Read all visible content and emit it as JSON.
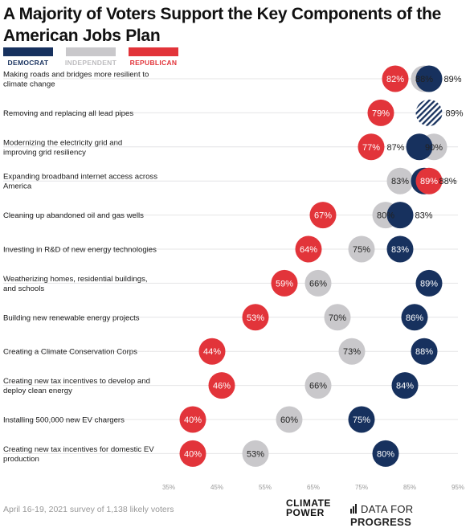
{
  "title": "A Majority of Voters Support the Key Components of the American Jobs Plan",
  "legend": [
    {
      "label": "DEMOCRAT",
      "color": "#17315e"
    },
    {
      "label": "INDEPENDENT",
      "color": "#c9c8cb"
    },
    {
      "label": "REPUBLICAN",
      "color": "#e2343a"
    }
  ],
  "footer": {
    "note": "April 16-19, 2021 survey of 1,138 likely voters",
    "brand_cp_line1": "CLIMATE",
    "brand_cp_line2": "POWER",
    "brand_dfp_prefix": "DATA FOR ",
    "brand_dfp_bold": "PROGRESS"
  },
  "chart_data": {
    "type": "scatter",
    "title": "A Majority of Voters Support the Key Components of the American Jobs Plan",
    "xlim": [
      35,
      95
    ],
    "xticks": [
      "35%",
      "45%",
      "55%",
      "65%",
      "75%",
      "85%",
      "95%"
    ],
    "grid": true,
    "legend_position": "top-left",
    "categories": [
      "Making roads and bridges more resilient to climate change",
      "Removing and replacing all lead pipes",
      "Modernizing the electricity grid and improving grid resiliency",
      "Expanding broadband internet access across America",
      "Cleaning up abandoned oil and gas wells",
      "Investing in R&D of new energy technologies",
      "Weatherizing homes, residential buildings, and schools",
      "Building new renewable energy projects",
      "Creating a Climate Conservation Corps",
      "Creating new tax incentives to develop and deploy clean energy",
      "Installing 500,000 new EV chargers",
      "Creating new tax incentives for domestic EV production"
    ],
    "series": [
      {
        "name": "DEMOCRAT",
        "values": [
          89,
          89,
          87,
          88,
          83,
          83,
          89,
          86,
          88,
          84,
          75,
          80
        ]
      },
      {
        "name": "INDEPENDENT",
        "values": [
          88,
          89,
          90,
          83,
          80,
          75,
          66,
          70,
          73,
          66,
          60,
          53
        ]
      },
      {
        "name": "REPUBLICAN",
        "values": [
          82,
          79,
          77,
          89,
          67,
          64,
          59,
          53,
          44,
          46,
          40,
          40
        ]
      }
    ]
  }
}
